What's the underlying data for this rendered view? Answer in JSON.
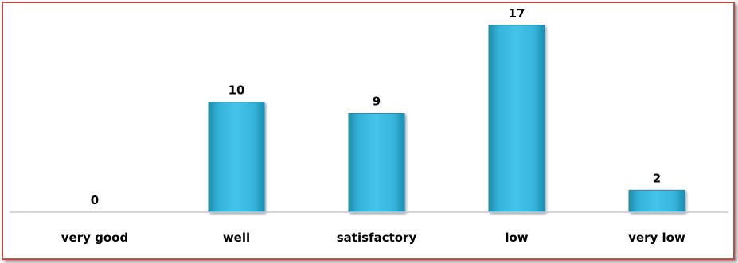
{
  "chart_data": {
    "type": "bar",
    "categories": [
      "very good",
      "well",
      "satisfactory",
      "low",
      "very low"
    ],
    "values": [
      0,
      10,
      9,
      17,
      2
    ],
    "title": "",
    "xlabel": "",
    "ylabel": "",
    "ylim": [
      0,
      18
    ],
    "grid": false,
    "legend": "none",
    "colors": {
      "bar": "#3fbde3",
      "bar_dark": "#1f8fb2",
      "frame_border": "#c0504d",
      "axis": "#c8c8c8"
    }
  }
}
